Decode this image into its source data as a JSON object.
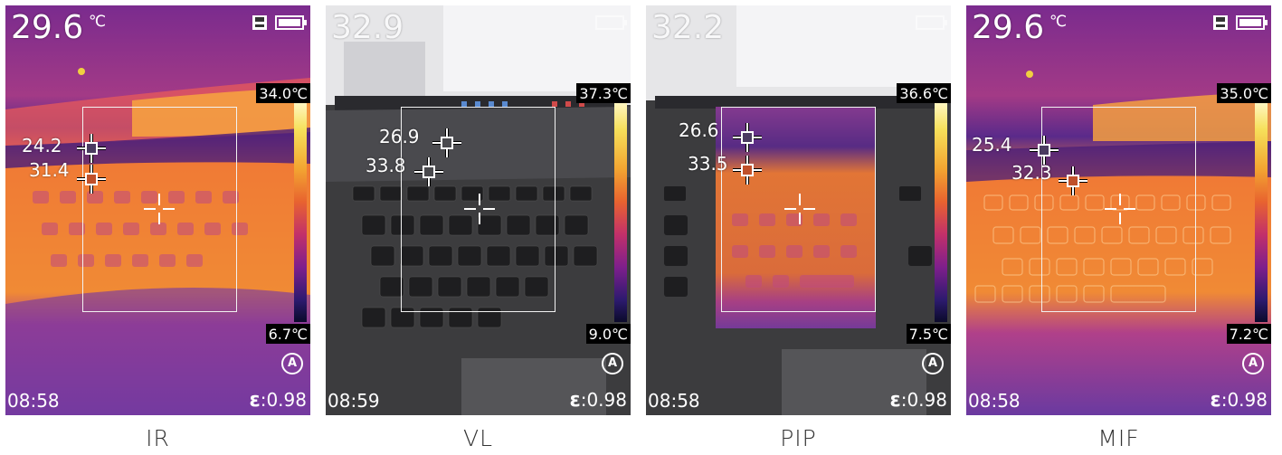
{
  "panels": [
    {
      "caption": "IR",
      "main_temp": "29.6",
      "main_unit": "℃",
      "scale_max": "34.0℃",
      "scale_min": "6.7℃",
      "auto_mode": "A",
      "time": "08:58",
      "epsilon_symbol": "ε",
      "emissivity": ":0.98",
      "points": [
        {
          "label": "24.2"
        },
        {
          "label": "31.4"
        }
      ],
      "icons": [
        "sd-card-icon",
        "battery-icon",
        "auto-mode-icon",
        "crosshair-icon"
      ]
    },
    {
      "caption": "VL",
      "main_temp": "32.9",
      "main_unit": "",
      "scale_max": "37.3℃",
      "scale_min": "9.0℃",
      "auto_mode": "A",
      "time": "08:59",
      "epsilon_symbol": "ε",
      "emissivity": ":0.98",
      "points": [
        {
          "label": "26.9"
        },
        {
          "label": "33.8"
        }
      ],
      "icons": [
        "battery-icon",
        "auto-mode-icon",
        "crosshair-icon"
      ]
    },
    {
      "caption": "PIP",
      "main_temp": "32.2",
      "main_unit": "",
      "scale_max": "36.6℃",
      "scale_min": "7.5℃",
      "auto_mode": "A",
      "time": "08:58",
      "epsilon_symbol": "ε",
      "emissivity": ":0.98",
      "points": [
        {
          "label": "26.6"
        },
        {
          "label": "33.5"
        }
      ],
      "icons": [
        "battery-icon",
        "auto-mode-icon",
        "crosshair-icon"
      ]
    },
    {
      "caption": "MIF",
      "main_temp": "29.6",
      "main_unit": "℃",
      "scale_max": "35.0℃",
      "scale_min": "7.2℃",
      "auto_mode": "A",
      "time": "08:58",
      "epsilon_symbol": "ε",
      "emissivity": ":0.98",
      "points": [
        {
          "label": "25.4"
        },
        {
          "label": "32.3"
        }
      ],
      "icons": [
        "sd-card-icon",
        "battery-icon",
        "auto-mode-icon",
        "crosshair-icon"
      ]
    }
  ],
  "colors": {
    "thermal_hot": "#f08a35",
    "thermal_warm": "#d84a6a",
    "thermal_cool": "#6a2890",
    "thermal_cold": "#2a1560",
    "visible_screen": "#e8e8ea",
    "visible_keyboard": "#3a3a3c",
    "overlay_text": "#ffffff"
  }
}
